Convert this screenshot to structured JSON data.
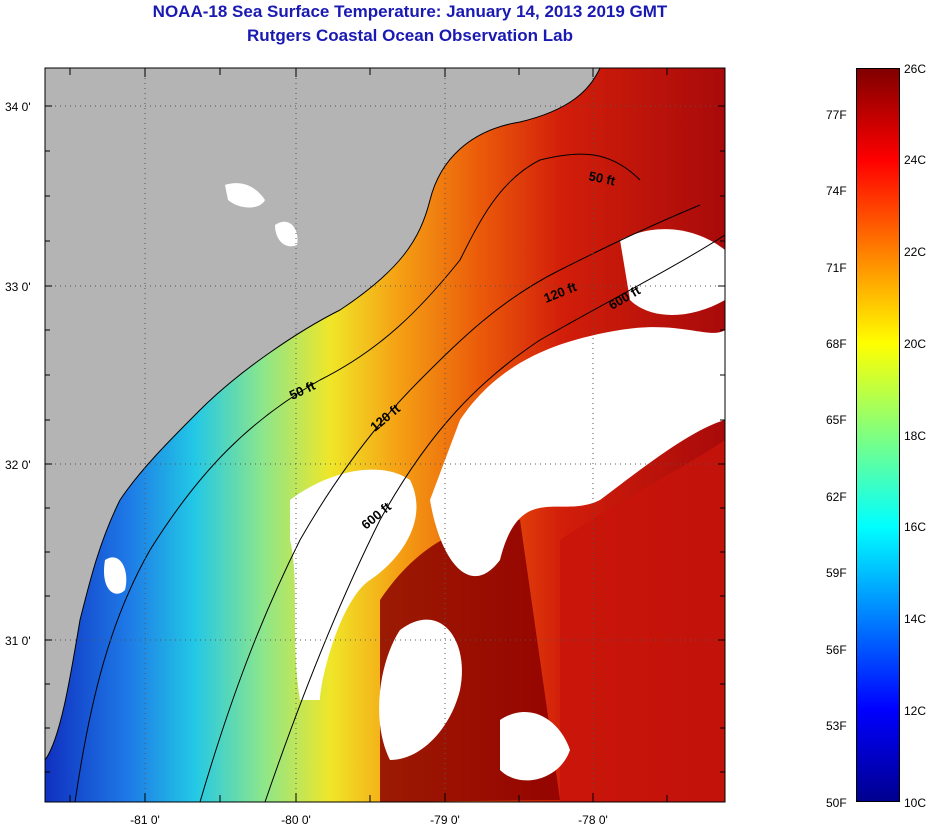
{
  "header": {
    "title": "NOAA-18 Sea Surface Temperature:  January 14, 2013 2019 GMT",
    "subtitle": "Rutgers Coastal Ocean Observation Lab"
  },
  "map": {
    "lat_labels": [
      "34 0'",
      "33 0'",
      "32 0'",
      "31 0'"
    ],
    "lon_labels": [
      "-81 0'",
      "-80 0'",
      "-79 0'",
      "-78 0'"
    ],
    "isobath_labels": [
      "50 ft",
      "120 ft",
      "600 ft",
      "50 ft",
      "120 ft",
      "600 ft"
    ],
    "colors": {
      "land": "#b4b4b4",
      "cloud": "#ffffff",
      "warm": "#8b0000",
      "cool": "#1e40c8"
    }
  },
  "colorbar": {
    "celsius": [
      "26C",
      "24C",
      "22C",
      "20C",
      "18C",
      "16C",
      "14C",
      "12C",
      "10C"
    ],
    "fahrenheit": [
      "77F",
      "74F",
      "71F",
      "68F",
      "65F",
      "62F",
      "59F",
      "56F",
      "53F",
      "50F"
    ],
    "range_c": [
      10,
      26
    ],
    "palette": [
      "#00008f",
      "#0000ff",
      "#0080ff",
      "#00ffff",
      "#80ff80",
      "#ffff00",
      "#ff8000",
      "#ff0000",
      "#800000"
    ]
  }
}
